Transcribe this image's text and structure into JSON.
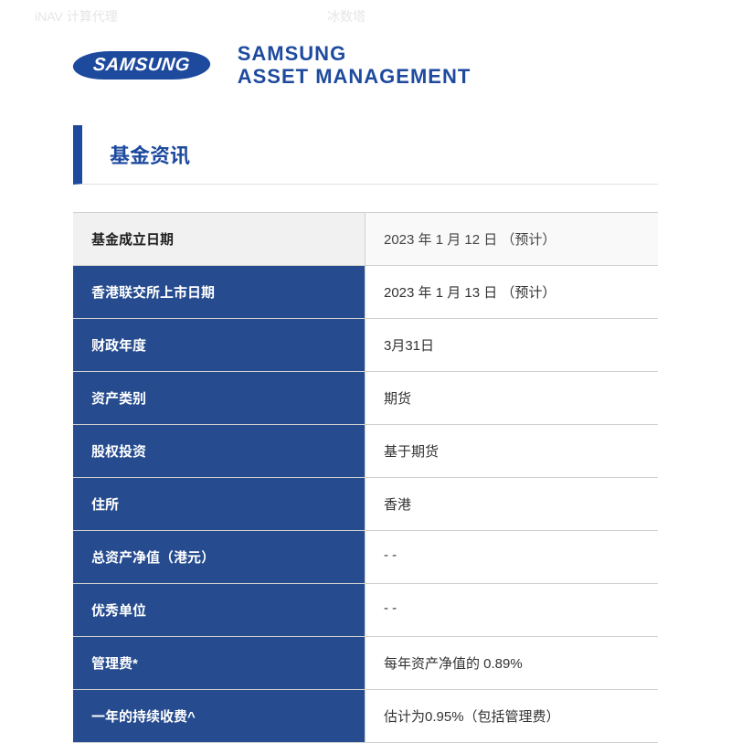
{
  "ghost": {
    "label": "iNAV 计算代理",
    "value": "冰数塔"
  },
  "logo_text": "SAMSUNG",
  "header_line1": "SAMSUNG",
  "header_line2": "ASSET MANAGEMENT",
  "section_title": "基金资讯",
  "table": {
    "header_label": "基金成立日期",
    "header_value": "2023 年 1 月 12 日 （预计）",
    "rows": [
      {
        "label": "香港联交所上市日期",
        "value": "2023 年 1 月 13 日 （预计）"
      },
      {
        "label": "财政年度",
        "value": "3月31日"
      },
      {
        "label": "资产类别",
        "value": "期货"
      },
      {
        "label": "股权投资",
        "value": "基于期货"
      },
      {
        "label": "住所",
        "value": "香港"
      },
      {
        "label": "总资产净值（港元）",
        "value": "- -"
      },
      {
        "label": "优秀单位",
        "value": "- -"
      },
      {
        "label": "管理费*",
        "value": "每年资产净值的 0.89%"
      },
      {
        "label": "一年的持续收费^",
        "value": "估计为0.95%（包括管理费）"
      }
    ]
  },
  "colors": {
    "brand_blue": "#1e4a9e",
    "row_label_bg": "#264c8f",
    "border": "#d0d0d0",
    "header_row_bg": "#f1f1f1"
  }
}
